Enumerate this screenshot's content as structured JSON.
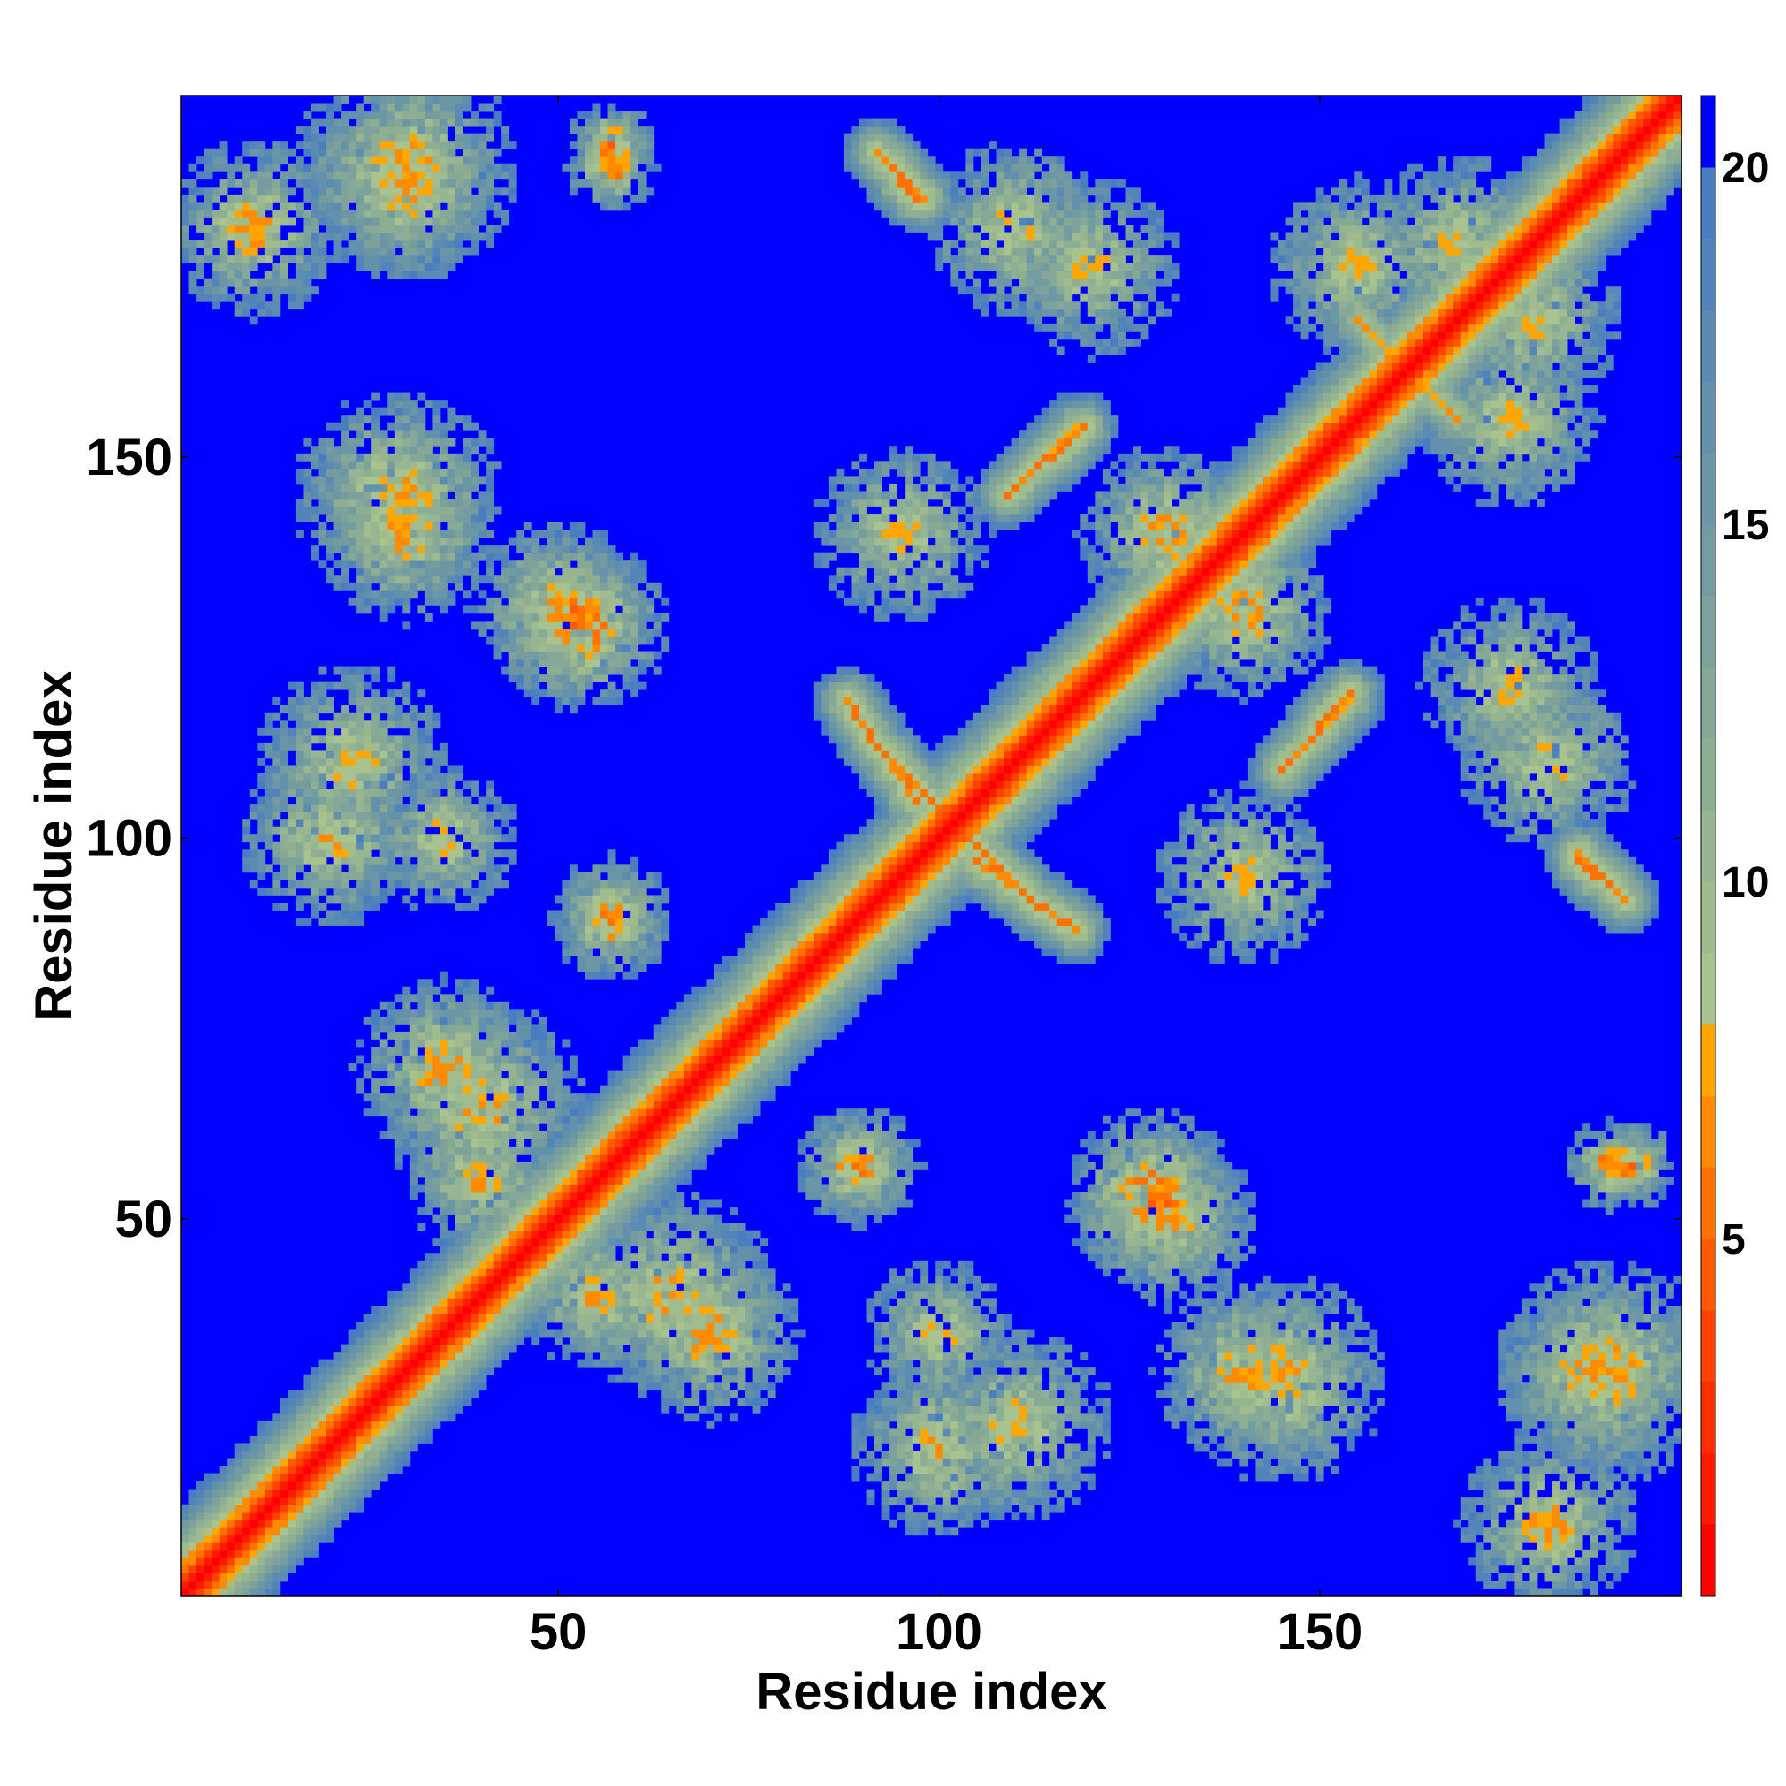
{
  "chart_data": {
    "type": "heatmap",
    "title": "",
    "xlabel": "Residue index",
    "ylabel": "Residue index",
    "xlim": [
      1,
      197
    ],
    "ylim": [
      1,
      197
    ],
    "xticks": [
      50,
      100,
      150
    ],
    "yticks": [
      50,
      100,
      150
    ],
    "colorbar": {
      "ticks": [
        5,
        10,
        15,
        20
      ],
      "range": [
        0,
        21
      ],
      "bins": [
        {
          "from": 0,
          "to": 1,
          "color": "#ff0000"
        },
        {
          "from": 1,
          "to": 2,
          "color": "#ff1a00"
        },
        {
          "from": 2,
          "to": 3,
          "color": "#ff2e00"
        },
        {
          "from": 3,
          "to": 4,
          "color": "#ff4200"
        },
        {
          "from": 4,
          "to": 5,
          "color": "#ff5a00"
        },
        {
          "from": 5,
          "to": 6,
          "color": "#ff7200"
        },
        {
          "from": 6,
          "to": 7,
          "color": "#ff8c00"
        },
        {
          "from": 7,
          "to": 8,
          "color": "#ffa600"
        },
        {
          "from": 8,
          "to": 9,
          "color": "#a8c38e"
        },
        {
          "from": 9,
          "to": 10,
          "color": "#a0bc8e"
        },
        {
          "from": 10,
          "to": 11,
          "color": "#97b590"
        },
        {
          "from": 11,
          "to": 12,
          "color": "#8eae93"
        },
        {
          "from": 12,
          "to": 13,
          "color": "#85a897"
        },
        {
          "from": 13,
          "to": 14,
          "color": "#7ca29b"
        },
        {
          "from": 14,
          "to": 15,
          "color": "#749ca0"
        },
        {
          "from": 15,
          "to": 16,
          "color": "#6b96a6"
        },
        {
          "from": 16,
          "to": 17,
          "color": "#6390ab"
        },
        {
          "from": 17,
          "to": 18,
          "color": "#5b8ab2"
        },
        {
          "from": 18,
          "to": 19,
          "color": "#5384b9"
        },
        {
          "from": 19,
          "to": 20,
          "color": "#4a7dc0"
        },
        {
          "from": 20,
          "to": 21,
          "color": "#0000ff"
        }
      ]
    },
    "diagonal_distance": 0,
    "background_distance": 21,
    "structure_bands": [
      {
        "x0": 91,
        "y0": 113,
        "x1": 101,
        "y1": 103,
        "center": 5
      },
      {
        "x0": 105,
        "y0": 97,
        "x1": 118,
        "y1": 88,
        "center": 5
      },
      {
        "x0": 110,
        "y0": 146,
        "x1": 118,
        "y1": 154,
        "center": 6
      },
      {
        "x0": 145,
        "y0": 109,
        "x1": 154,
        "y1": 119,
        "center": 5
      },
      {
        "x0": 92,
        "y0": 190,
        "x1": 98,
        "y1": 184,
        "center": 5
      },
      {
        "x0": 184,
        "y0": 97,
        "x1": 190,
        "y1": 92,
        "center": 5
      },
      {
        "x0": 160,
        "y0": 163,
        "x1": 168,
        "y1": 155,
        "center": 6
      }
    ],
    "contact_patches": [
      {
        "x": 57,
        "y": 191,
        "min": 4,
        "radius": 6
      },
      {
        "x": 188,
        "y": 57,
        "min": 4,
        "radius": 6
      },
      {
        "x": 30,
        "y": 188,
        "min": 6,
        "radius": 15
      },
      {
        "x": 29,
        "y": 145,
        "min": 6,
        "radius": 14
      },
      {
        "x": 50,
        "y": 130,
        "min": 6,
        "radius": 12
      },
      {
        "x": 23,
        "y": 110,
        "min": 7,
        "radius": 13
      },
      {
        "x": 35,
        "y": 100,
        "min": 7,
        "radius": 10
      },
      {
        "x": 57,
        "y": 90,
        "min": 6,
        "radius": 8
      },
      {
        "x": 35,
        "y": 70,
        "min": 6,
        "radius": 12
      },
      {
        "x": 40,
        "y": 55,
        "min": 6,
        "radius": 10
      },
      {
        "x": 65,
        "y": 40,
        "min": 6,
        "radius": 14
      },
      {
        "x": 89,
        "y": 57,
        "min": 5,
        "radius": 8
      },
      {
        "x": 100,
        "y": 20,
        "min": 6,
        "radius": 12
      },
      {
        "x": 128,
        "y": 53,
        "min": 4,
        "radius": 12
      },
      {
        "x": 140,
        "y": 30,
        "min": 6,
        "radius": 12
      },
      {
        "x": 120,
        "y": 175,
        "min": 7,
        "radius": 12
      },
      {
        "x": 95,
        "y": 140,
        "min": 7,
        "radius": 12
      },
      {
        "x": 140,
        "y": 130,
        "min": 6,
        "radius": 12
      },
      {
        "x": 180,
        "y": 110,
        "min": 7,
        "radius": 12
      },
      {
        "x": 185,
        "y": 30,
        "min": 6,
        "radius": 12
      },
      {
        "x": 180,
        "y": 10,
        "min": 6,
        "radius": 12
      },
      {
        "x": 178,
        "y": 168,
        "min": 7,
        "radius": 12
      },
      {
        "x": 155,
        "y": 175,
        "min": 7,
        "radius": 12
      }
    ]
  }
}
